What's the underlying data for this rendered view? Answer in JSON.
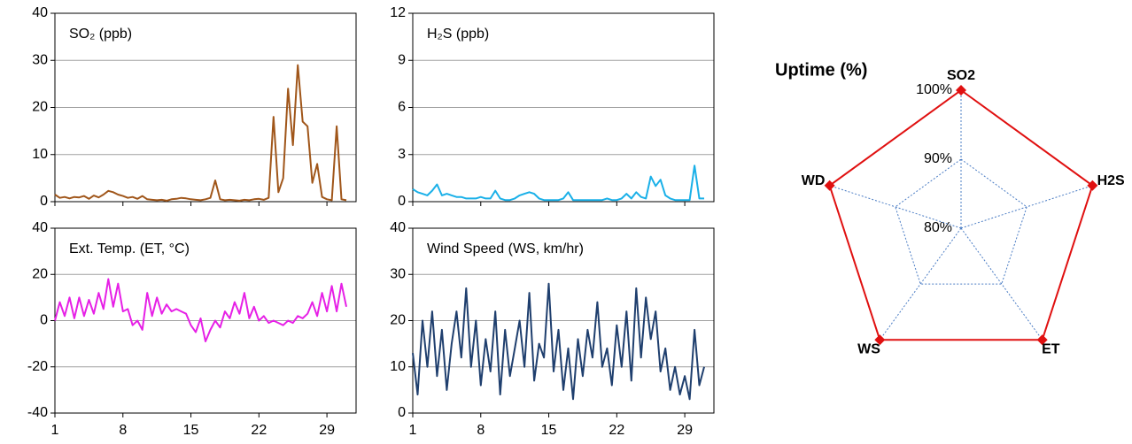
{
  "chart_data": [
    {
      "type": "line",
      "title": "SO₂ (ppb)",
      "color": "#a0561a",
      "x": [
        1,
        1.5,
        2,
        2.5,
        3,
        3.5,
        4,
        4.5,
        5,
        5.5,
        6,
        6.5,
        7,
        7.5,
        8,
        8.5,
        9,
        9.5,
        10,
        10.5,
        11,
        11.5,
        12,
        12.5,
        13,
        13.5,
        14,
        14.5,
        15,
        15.5,
        16,
        16.5,
        17,
        17.5,
        18,
        18.5,
        19,
        19.5,
        20,
        20.5,
        21,
        21.5,
        22,
        22.5,
        23,
        23.5,
        24,
        24.5,
        25,
        25.5,
        26,
        26.5,
        27,
        27.5,
        28,
        28.5,
        29,
        29.5,
        30,
        30.5,
        31
      ],
      "values": [
        1.5,
        0.8,
        1,
        0.7,
        1,
        0.9,
        1.2,
        0.6,
        1.3,
        0.9,
        1.5,
        2.3,
        2,
        1.5,
        1.2,
        0.8,
        1,
        0.6,
        1.2,
        0.5,
        0.4,
        0.3,
        0.4,
        0.2,
        0.5,
        0.6,
        0.8,
        0.7,
        0.5,
        0.4,
        0.3,
        0.5,
        0.8,
        4.5,
        0.5,
        0.3,
        0.4,
        0.3,
        0.2,
        0.4,
        0.3,
        0.5,
        0.6,
        0.4,
        0.8,
        18,
        2,
        5,
        24,
        12,
        29,
        17,
        16,
        4,
        8,
        1,
        0.5,
        0.3,
        16,
        0.5,
        0.3
      ],
      "xlim": [
        1,
        32
      ],
      "xticks": [
        1,
        8,
        15,
        22,
        29
      ],
      "ylim": [
        0,
        40
      ],
      "yticks": [
        0,
        10,
        20,
        30,
        40
      ],
      "grid": true
    },
    {
      "type": "line",
      "title": "H₂S  (ppb)",
      "color": "#1ab0e8",
      "x": [
        1,
        1.5,
        2,
        2.5,
        3,
        3.5,
        4,
        4.5,
        5,
        5.5,
        6,
        6.5,
        7,
        7.5,
        8,
        8.5,
        9,
        9.5,
        10,
        10.5,
        11,
        11.5,
        12,
        12.5,
        13,
        13.5,
        14,
        14.5,
        15,
        15.5,
        16,
        16.5,
        17,
        17.5,
        18,
        18.5,
        19,
        19.5,
        20,
        20.5,
        21,
        21.5,
        22,
        22.5,
        23,
        23.5,
        24,
        24.5,
        25,
        25.5,
        26,
        26.5,
        27,
        27.5,
        28,
        28.5,
        29,
        29.5,
        30,
        30.5,
        31
      ],
      "values": [
        0.8,
        0.6,
        0.5,
        0.4,
        0.7,
        1.1,
        0.4,
        0.5,
        0.4,
        0.3,
        0.3,
        0.2,
        0.2,
        0.2,
        0.3,
        0.2,
        0.2,
        0.7,
        0.2,
        0.1,
        0.1,
        0.2,
        0.4,
        0.5,
        0.6,
        0.5,
        0.2,
        0.1,
        0.1,
        0.1,
        0.1,
        0.2,
        0.6,
        0.1,
        0.1,
        0.1,
        0.1,
        0.1,
        0.1,
        0.1,
        0.2,
        0.1,
        0.1,
        0.2,
        0.5,
        0.2,
        0.6,
        0.3,
        0.2,
        1.6,
        1.0,
        1.4,
        0.4,
        0.2,
        0.1,
        0.1,
        0.1,
        0.1,
        2.3,
        0.2,
        0.2
      ],
      "xlim": [
        1,
        32
      ],
      "xticks": [
        1,
        8,
        15,
        22,
        29
      ],
      "ylim": [
        0,
        12
      ],
      "yticks": [
        0,
        3,
        6,
        9,
        12
      ],
      "grid": true
    },
    {
      "type": "line",
      "title": "Ext. Temp. (ET, °C)",
      "color": "#e620e6",
      "x": [
        1,
        1.5,
        2,
        2.5,
        3,
        3.5,
        4,
        4.5,
        5,
        5.5,
        6,
        6.5,
        7,
        7.5,
        8,
        8.5,
        9,
        9.5,
        10,
        10.5,
        11,
        11.5,
        12,
        12.5,
        13,
        13.5,
        14,
        14.5,
        15,
        15.5,
        16,
        16.5,
        17,
        17.5,
        18,
        18.5,
        19,
        19.5,
        20,
        20.5,
        21,
        21.5,
        22,
        22.5,
        23,
        23.5,
        24,
        24.5,
        25,
        25.5,
        26,
        26.5,
        27,
        27.5,
        28,
        28.5,
        29,
        29.5,
        30,
        30.5,
        31
      ],
      "values": [
        0,
        8,
        2,
        10,
        1,
        10,
        2,
        9,
        3,
        12,
        5,
        18,
        6,
        16,
        4,
        5,
        -2,
        0,
        -4,
        12,
        2,
        10,
        3,
        7,
        4,
        5,
        4,
        3,
        -2,
        -5,
        1,
        -9,
        -4,
        0,
        -3,
        4,
        1,
        8,
        3,
        12,
        1,
        6,
        0,
        2,
        -1,
        0,
        -1,
        -2,
        0,
        -1,
        2,
        1,
        3,
        8,
        2,
        12,
        4,
        15,
        4,
        16,
        6
      ],
      "xlim": [
        1,
        32
      ],
      "xticks": [
        1,
        8,
        15,
        22,
        29
      ],
      "ylim": [
        -40,
        40
      ],
      "yticks": [
        -40,
        -20,
        0,
        20,
        40
      ],
      "grid": true
    },
    {
      "type": "line",
      "title": "Wind Speed (WS, km/hr)",
      "color": "#1f3f6e",
      "x": [
        1,
        1.5,
        2,
        2.5,
        3,
        3.5,
        4,
        4.5,
        5,
        5.5,
        6,
        6.5,
        7,
        7.5,
        8,
        8.5,
        9,
        9.5,
        10,
        10.5,
        11,
        11.5,
        12,
        12.5,
        13,
        13.5,
        14,
        14.5,
        15,
        15.5,
        16,
        16.5,
        17,
        17.5,
        18,
        18.5,
        19,
        19.5,
        20,
        20.5,
        21,
        21.5,
        22,
        22.5,
        23,
        23.5,
        24,
        24.5,
        25,
        25.5,
        26,
        26.5,
        27,
        27.5,
        28,
        28.5,
        29,
        29.5,
        30,
        30.5,
        31
      ],
      "values": [
        13,
        4,
        20,
        10,
        22,
        8,
        18,
        5,
        15,
        22,
        12,
        27,
        10,
        20,
        6,
        16,
        9,
        22,
        4,
        18,
        8,
        14,
        20,
        10,
        26,
        7,
        15,
        12,
        28,
        9,
        18,
        5,
        14,
        3,
        16,
        8,
        18,
        12,
        24,
        10,
        14,
        6,
        19,
        10,
        22,
        7,
        27,
        12,
        25,
        16,
        22,
        9,
        14,
        5,
        10,
        4,
        8,
        3,
        18,
        6,
        10
      ],
      "xlim": [
        1,
        32
      ],
      "xticks": [
        1,
        8,
        15,
        22,
        29
      ],
      "ylim": [
        0,
        40
      ],
      "yticks": [
        0,
        10,
        20,
        30,
        40
      ],
      "grid": true
    },
    {
      "type": "radar",
      "title": "Uptime (%)",
      "color": "#e01010",
      "grid_color": "#4a7cc4",
      "categories": [
        "SO2",
        "H2S",
        "ET",
        "WS",
        "WD"
      ],
      "values": [
        100,
        100,
        100,
        100,
        100
      ],
      "rlim": [
        80,
        100
      ],
      "rticks": [
        {
          "value": 80,
          "label": "80%"
        },
        {
          "value": 90,
          "label": "90%"
        },
        {
          "value": 100,
          "label": "100%"
        }
      ]
    }
  ]
}
